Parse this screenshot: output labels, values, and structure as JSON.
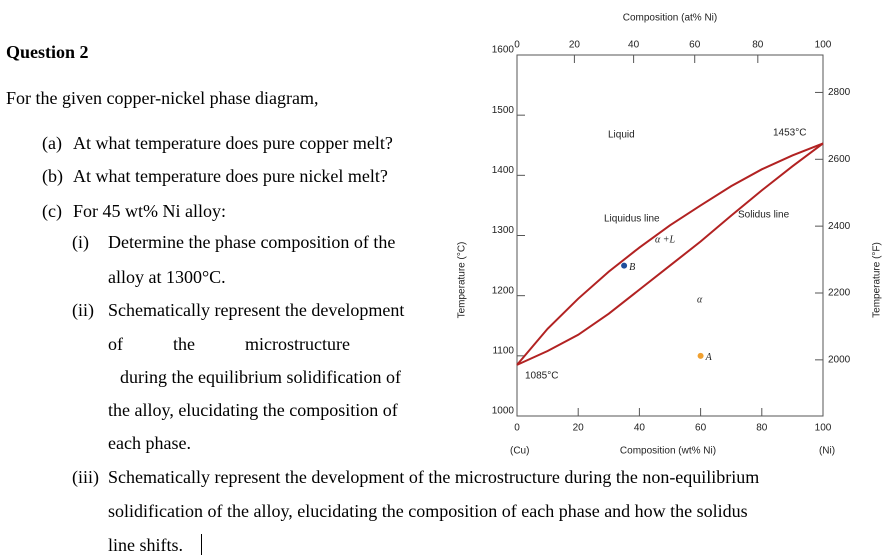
{
  "question": {
    "title": "Question 2",
    "intro": "For the given copper-nickel phase diagram,",
    "items": [
      {
        "label": "(a)",
        "lines": [
          "At what temperature does pure copper melt?"
        ]
      },
      {
        "label": "(b)",
        "lines": [
          "At what temperature does pure nickel melt?"
        ]
      },
      {
        "label": "(c)",
        "lines": [
          "For 45 wt% Ni alloy:"
        ]
      }
    ],
    "subitems": [
      {
        "label": "(i)",
        "lines": [
          "Determine the phase composition of the",
          "alloy at 1300°C."
        ]
      },
      {
        "label": "(ii)",
        "lines": [
          "Schematically represent the development",
          "of the microstructure",
          "during the equilibrium solidification of",
          "the alloy, elucidating the composition of",
          "each phase."
        ]
      },
      {
        "label": "(iii)",
        "lines": [
          "Schematically represent the development of the microstructure during the non-equilibrium",
          "solidification of the alloy, elucidating the composition of each phase and how the solidus",
          "line shifts."
        ]
      }
    ]
  },
  "chart_data": {
    "type": "line",
    "xlabel": "Composition (wt% Ni)",
    "x2label": "Composition (at% Ni)",
    "ylabel": "Temperature (°C)",
    "y2label": "Temperature (°F)",
    "xlim": [
      0,
      100
    ],
    "xticks": [
      0,
      20,
      40,
      60,
      80,
      100
    ],
    "x2ticks": [
      0,
      20,
      40,
      60,
      80,
      100
    ],
    "ylim": [
      1000,
      1600
    ],
    "yticks": [
      1000,
      1100,
      1200,
      1300,
      1400,
      1500,
      1600
    ],
    "y2lim": [
      1832,
      2912
    ],
    "y2ticks": [
      2000,
      2200,
      2400,
      2600,
      2800
    ],
    "end_labels": [
      "(Cu)",
      "(Ni)"
    ],
    "series": [
      {
        "name": "Liquidus line",
        "color": "#b22222",
        "x": [
          0,
          10,
          20,
          30,
          40,
          50,
          60,
          70,
          80,
          90,
          100
        ],
        "values": [
          1085,
          1145,
          1195,
          1240,
          1280,
          1317,
          1350,
          1382,
          1410,
          1433,
          1453
        ]
      },
      {
        "name": "Solidus line",
        "color": "#b22222",
        "x": [
          0,
          10,
          20,
          30,
          40,
          50,
          60,
          70,
          80,
          90,
          100
        ],
        "values": [
          1085,
          1108,
          1135,
          1170,
          1210,
          1250,
          1290,
          1333,
          1375,
          1415,
          1453
        ]
      }
    ],
    "points": [
      {
        "name": "B",
        "x": 35,
        "y": 1250,
        "color": "#1f4e9c"
      },
      {
        "name": "A",
        "x": 60,
        "y": 1100,
        "color": "#f0a030"
      }
    ],
    "annotations": [
      "Liquid",
      "1453°C",
      "α +L",
      "α",
      "1085°C"
    ]
  }
}
